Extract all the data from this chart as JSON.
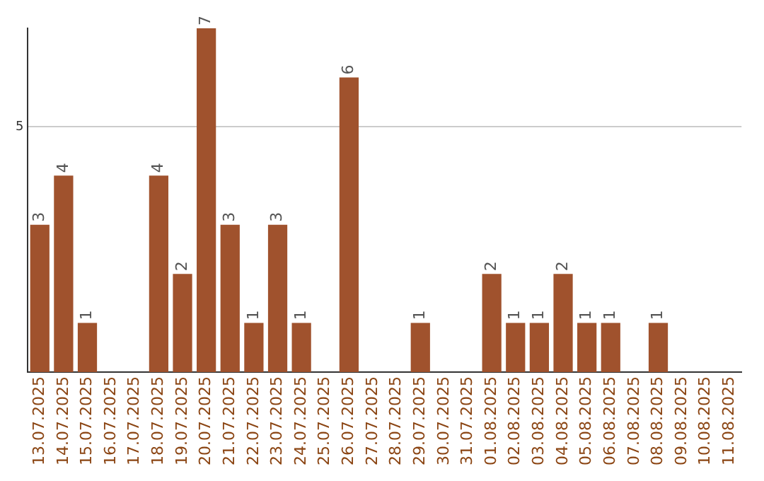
{
  "chart_data": {
    "type": "bar",
    "categories": [
      "13.07.2025",
      "14.07.2025",
      "15.07.2025",
      "16.07.2025",
      "17.07.2025",
      "18.07.2025",
      "19.07.2025",
      "20.07.2025",
      "21.07.2025",
      "22.07.2025",
      "23.07.2025",
      "24.07.2025",
      "25.07.2025",
      "26.07.2025",
      "27.07.2025",
      "28.07.2025",
      "29.07.2025",
      "30.07.2025",
      "31.07.2025",
      "01.08.2025",
      "02.08.2025",
      "03.08.2025",
      "04.08.2025",
      "05.08.2025",
      "06.08.2025",
      "07.08.2025",
      "08.08.2025",
      "09.08.2025",
      "10.08.2025",
      "11.08.2025"
    ],
    "values": [
      3,
      4,
      1,
      0,
      0,
      4,
      2,
      7,
      3,
      1,
      3,
      1,
      0,
      6,
      0,
      0,
      1,
      0,
      0,
      2,
      1,
      1,
      2,
      1,
      1,
      0,
      1,
      0,
      0,
      0
    ],
    "value_labels": [
      "3",
      "4",
      "1",
      null,
      null,
      "4",
      "2",
      "7",
      "3",
      "1",
      "3",
      "1",
      null,
      "6",
      null,
      null,
      "1",
      null,
      null,
      "2",
      "1",
      "1",
      "2",
      "1",
      "1",
      null,
      "1",
      null,
      null,
      null
    ],
    "color": "#a0522d",
    "ylim": [
      0,
      7
    ],
    "yticks": [
      5
    ],
    "grid": "y",
    "legend": false
  }
}
